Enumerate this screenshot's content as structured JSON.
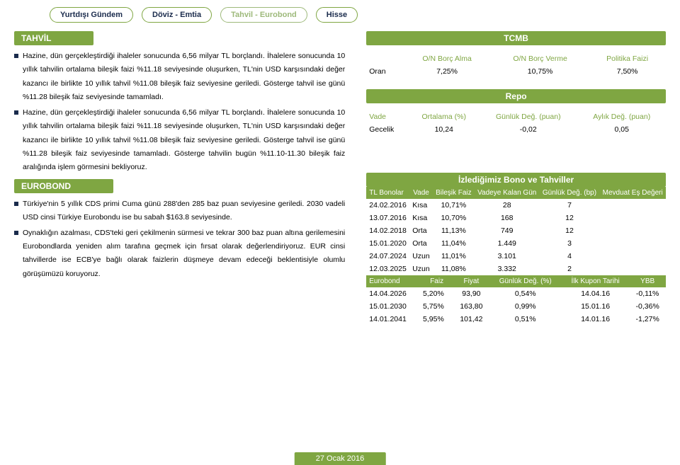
{
  "nav": {
    "tabs": [
      {
        "label": "Yurtdışı Gündem",
        "style": "dark"
      },
      {
        "label": "Döviz - Emtia",
        "style": "dark"
      },
      {
        "label": "Tahvil - Eurobond",
        "style": "light"
      },
      {
        "label": "Hisse",
        "style": "dark"
      }
    ]
  },
  "colors": {
    "green": "#7fa642",
    "lightGreen": "#9db97a",
    "navy": "#1a2b4c"
  },
  "left": {
    "section1_title": "TAHVİL",
    "bullets1": [
      "Hazine, dün gerçekleştirdiği ihaleler sonucunda 6,56 milyar TL borçlandı. İhalelere sonucunda 10 yıllık tahvilin ortalama bileşik faizi %11.18 seviyesinde oluşurken, TL'nin USD karşısındaki değer kazancı ile birlikte 10 yıllık tahvil %11.08 bileşik faiz seviyesine geriledi. Gösterge tahvil ise günü %11.28 bileşik faiz seviyesinde tamamladı.",
      "Hazine, dün gerçekleştirdiği ihaleler sonucunda 6,56 milyar TL borçlandı. İhalelere sonucunda 10 yıllık tahvilin ortalama bileşik faizi %11.18 seviyesinde oluşurken, TL'nin USD karşısındaki değer kazancı ile birlikte 10 yıllık tahvil %11.08 bileşik faiz seviyesine geriledi. Gösterge tahvil ise günü %11.28 bileşik faiz seviyesinde tamamladı. Gösterge tahvilin bugün %11.10-11.30 bileşik faiz aralığında işlem görmesini bekliyoruz."
    ],
    "section2_title": "EUROBOND",
    "bullets2": [
      "Türkiye'nin 5 yıllık CDS primi Cuma günü 288'den 285 baz puan seviyesine geriledi. 2030 vadeli USD cinsi Türkiye Eurobondu ise bu sabah $163.8 seviyesinde.",
      "Oynaklığın azalması, CDS'teki geri çekilmenin sürmesi ve tekrar 300 baz puan altına gerilemesini Eurobondlarda yeniden alım tarafına geçmek için fırsat olarak değerlendiriyoruz. EUR cinsi tahvillerde ise ECB'ye bağlı olarak faizlerin düşmeye devam edeceği beklentisiyle olumlu görüşümüzü koruyoruz."
    ]
  },
  "tcmb": {
    "title": "TCMB",
    "headers": [
      "",
      "O/N Borç Alma",
      "O/N Borç Verme",
      "Politika Faizi"
    ],
    "row": [
      "Oran",
      "7,25%",
      "10,75%",
      "7,50%"
    ]
  },
  "repo": {
    "title": "Repo",
    "headers": [
      "Vade",
      "Ortalama (%)",
      "Günlük Değ. (puan)",
      "Aylık Değ. (puan)"
    ],
    "row": [
      "Gecelik",
      "10,24",
      "-0,02",
      "0,05"
    ]
  },
  "bonds": {
    "title": "İzlediğimiz Bono ve Tahviller",
    "headers1": [
      "TL Bonolar",
      "Vade",
      "Bileşik Faiz",
      "Vadeye Kalan Gün",
      "Günlük Değ. (bp)",
      "Mevduat Eş Değeri"
    ],
    "rows1": [
      [
        "24.02.2016",
        "Kısa",
        "10,71%",
        "28",
        "7",
        ""
      ],
      [
        "13.07.2016",
        "Kısa",
        "10,70%",
        "168",
        "12",
        ""
      ],
      [
        "14.02.2018",
        "Orta",
        "11,13%",
        "749",
        "12",
        ""
      ],
      [
        "15.01.2020",
        "Orta",
        "11,04%",
        "1.449",
        "3",
        ""
      ],
      [
        "24.07.2024",
        "Uzun",
        "11,01%",
        "3.101",
        "4",
        ""
      ],
      [
        "12.03.2025",
        "Uzun",
        "11,08%",
        "3.332",
        "2",
        ""
      ]
    ],
    "headers2": [
      "Eurobond",
      "Faiz",
      "Fiyat",
      "Günlük Değ. (%)",
      "İlk Kupon Tarihi",
      "YBB"
    ],
    "rows2": [
      [
        "14.04.2026",
        "5,20%",
        "93,90",
        "0,54%",
        "14.04.16",
        "-0,11%"
      ],
      [
        "15.01.2030",
        "5,75%",
        "163,80",
        "0,99%",
        "15.01.16",
        "-0,36%"
      ],
      [
        "14.01.2041",
        "5,95%",
        "101,42",
        "0,51%",
        "14.01.16",
        "-1,27%"
      ]
    ]
  },
  "footer_date": "27 Ocak 2016"
}
